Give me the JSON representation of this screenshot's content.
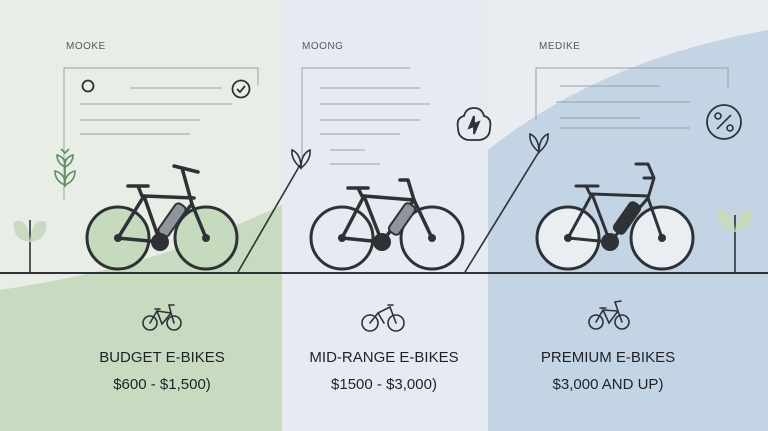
{
  "tiers": [
    {
      "tag": "MOOKE",
      "title": "BUDGET E-BIKES",
      "price": "$600 - $1,500)",
      "accent": "#c9dcc0"
    },
    {
      "tag": "MOONG",
      "title": "MID-RANGE E-BIKES",
      "price": "$1500 - $3,000)",
      "accent": "#e3e8ef"
    },
    {
      "tag": "MEDIKE",
      "title": "PREMIUM E-BIKES",
      "price": "$3,000 AND UP)",
      "accent": "#c5d6e6"
    }
  ],
  "icons": [
    "bike-icon",
    "check-circle-icon",
    "leaf-icon",
    "sprout-icon",
    "percent-badge-icon",
    "energy-hand-icon"
  ]
}
